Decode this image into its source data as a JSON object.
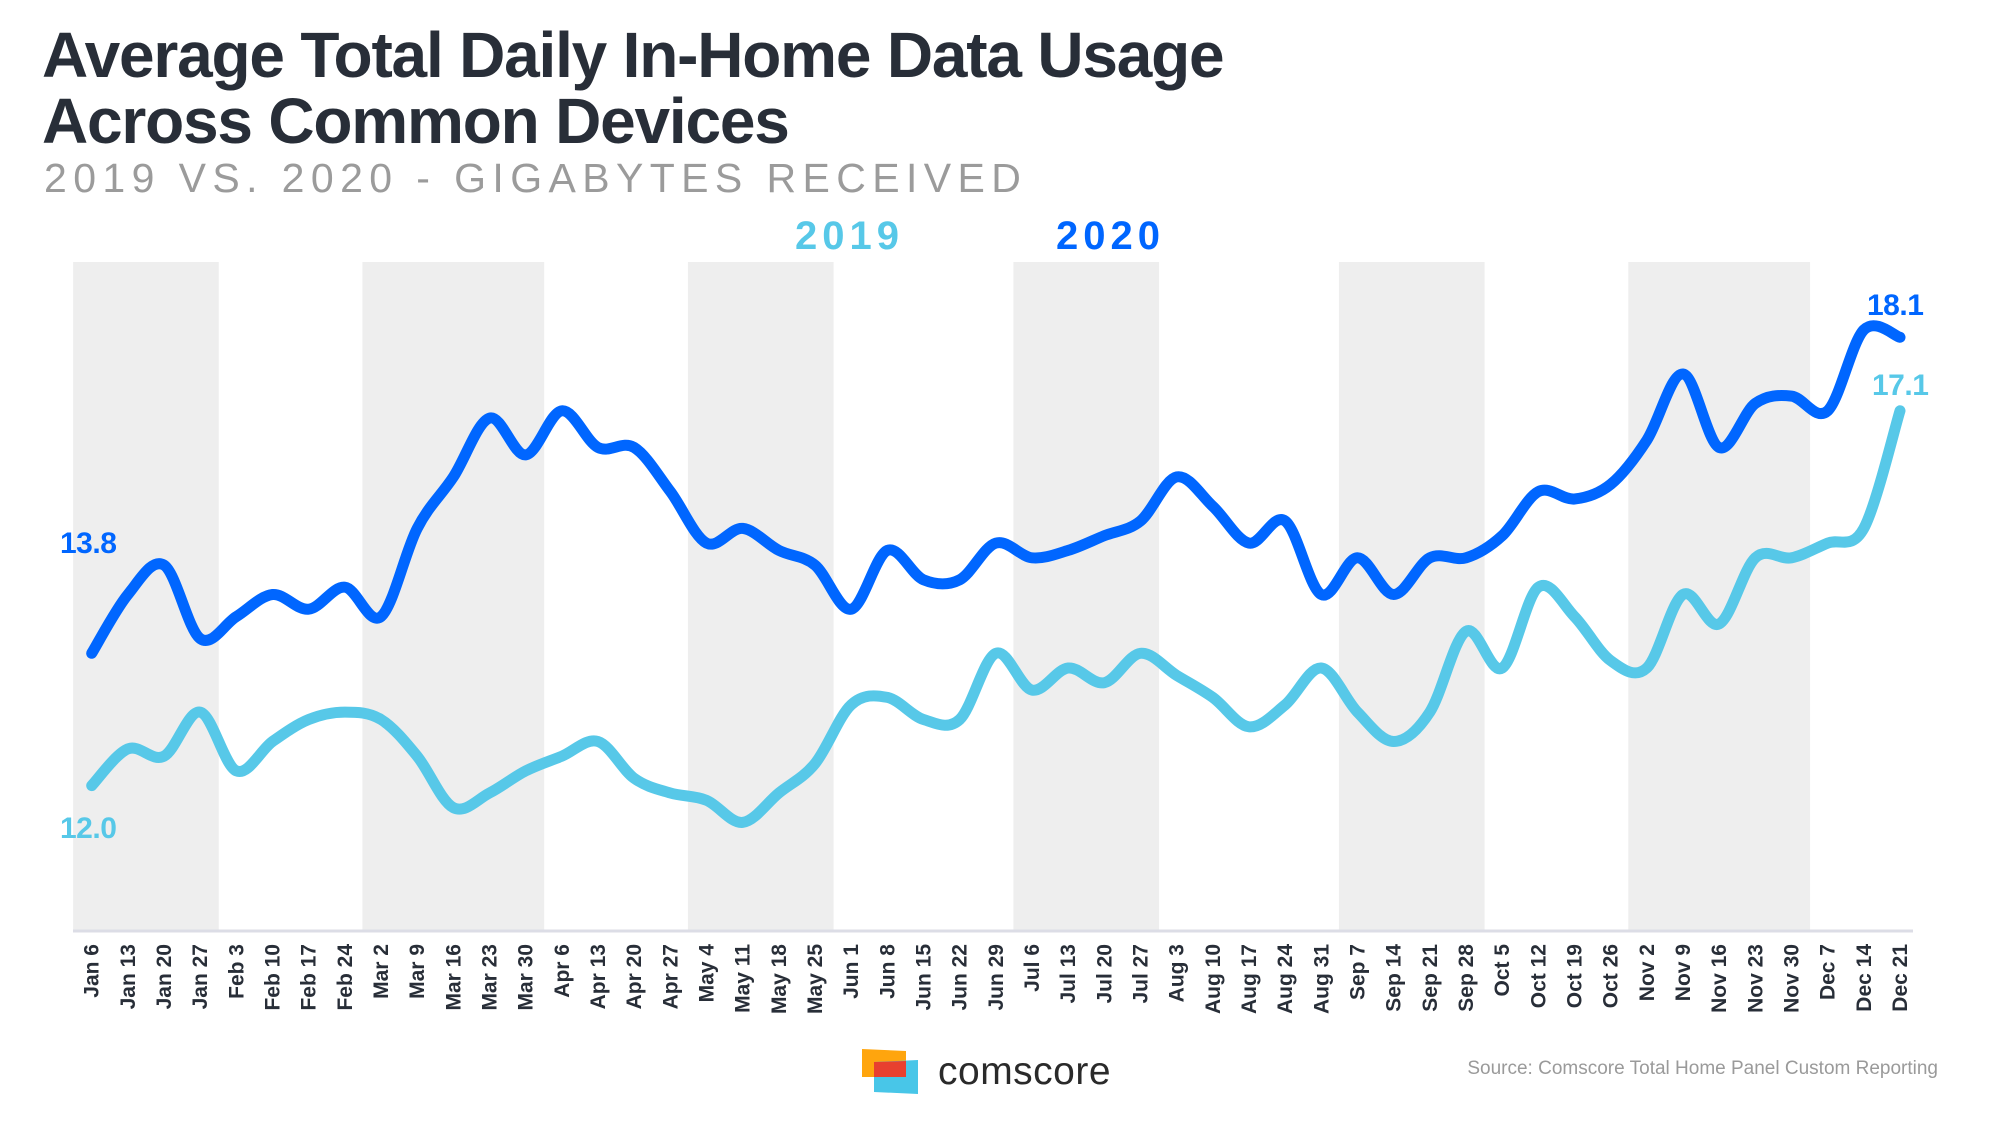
{
  "header": {
    "title_line1": "Average Total Daily In-Home Data Usage",
    "title_line2": "Across Common Devices",
    "subtitle": "2019 VS. 2020 - GIGABYTES RECEIVED"
  },
  "legend": [
    {
      "label": "2019",
      "color": "#57c8e8"
    },
    {
      "label": "2020",
      "color": "#0066ff"
    }
  ],
  "colors": {
    "series_2019": "#57c8e8",
    "series_2020": "#0066ff",
    "band": "#eeeeee",
    "axis": "#dcdde6",
    "tick_text": "#282e38"
  },
  "chart_data": {
    "type": "line",
    "title": "Average Total Daily In-Home Data Usage Across Common Devices",
    "subtitle": "2019 vs. 2020 - Gigabytes Received",
    "xlabel": "",
    "ylabel": "Gigabytes received",
    "ylim": [
      10.5,
      19.5
    ],
    "grid": false,
    "legend_position": "top-center",
    "shaded_months": [
      "Jan",
      "Mar",
      "May",
      "Jul",
      "Sep",
      "Nov"
    ],
    "categories": [
      "Jan 6",
      "Jan 13",
      "Jan 20",
      "Jan 27",
      "Feb 3",
      "Feb 10",
      "Feb 17",
      "Feb 24",
      "Mar 2",
      "Mar 9",
      "Mar 16",
      "Mar 23",
      "Mar 30",
      "Apr 6",
      "Apr 13",
      "Apr 20",
      "Apr 27",
      "May 4",
      "May 11",
      "May 18",
      "May 25",
      "Jun 1",
      "Jun 8",
      "Jun 15",
      "Jun 22",
      "Jun 29",
      "Jul 6",
      "Jul 13",
      "Jul 20",
      "Jul 27",
      "Aug 3",
      "Aug 10",
      "Aug 17",
      "Aug 24",
      "Aug 31",
      "Sep 7",
      "Sep 14",
      "Sep 21",
      "Sep 28",
      "Oct 5",
      "Oct 12",
      "Oct 19",
      "Oct 26",
      "Nov 2",
      "Nov 9",
      "Nov 16",
      "Nov 23",
      "Nov 30",
      "Dec 7",
      "Dec 14",
      "Dec 21"
    ],
    "series": [
      {
        "name": "2019",
        "color": "#57c8e8",
        "values": [
          12.0,
          12.5,
          12.4,
          13.0,
          12.2,
          12.6,
          12.9,
          13.0,
          12.9,
          12.4,
          11.7,
          11.9,
          12.2,
          12.4,
          12.6,
          12.1,
          11.9,
          11.8,
          11.5,
          11.9,
          12.3,
          13.1,
          13.2,
          12.9,
          12.9,
          13.8,
          13.3,
          13.6,
          13.4,
          13.8,
          13.5,
          13.2,
          12.8,
          13.1,
          13.6,
          13.0,
          12.6,
          13.0,
          14.1,
          13.6,
          14.7,
          14.3,
          13.7,
          13.6,
          14.6,
          14.2,
          15.1,
          15.1,
          15.3,
          15.5,
          17.1
        ],
        "labels": {
          "start": "12.0",
          "end": "17.1"
        }
      },
      {
        "name": "2020",
        "color": "#0066ff",
        "values": [
          13.8,
          14.6,
          15.0,
          14.0,
          14.3,
          14.6,
          14.4,
          14.7,
          14.3,
          15.5,
          16.2,
          17.0,
          16.5,
          17.1,
          16.6,
          16.6,
          16.0,
          15.3,
          15.5,
          15.2,
          15.0,
          14.4,
          15.2,
          14.8,
          14.8,
          15.3,
          15.1,
          15.2,
          15.4,
          15.6,
          16.2,
          15.8,
          15.3,
          15.6,
          14.6,
          15.1,
          14.6,
          15.1,
          15.1,
          15.4,
          16.0,
          15.9,
          16.1,
          16.7,
          17.6,
          16.6,
          17.2,
          17.3,
          17.1,
          18.2,
          18.1
        ],
        "labels": {
          "start": "13.8",
          "end": "18.1"
        }
      }
    ]
  },
  "footer": {
    "brand": "comscore",
    "source": "Source: Comscore Total Home Panel Custom Reporting"
  }
}
